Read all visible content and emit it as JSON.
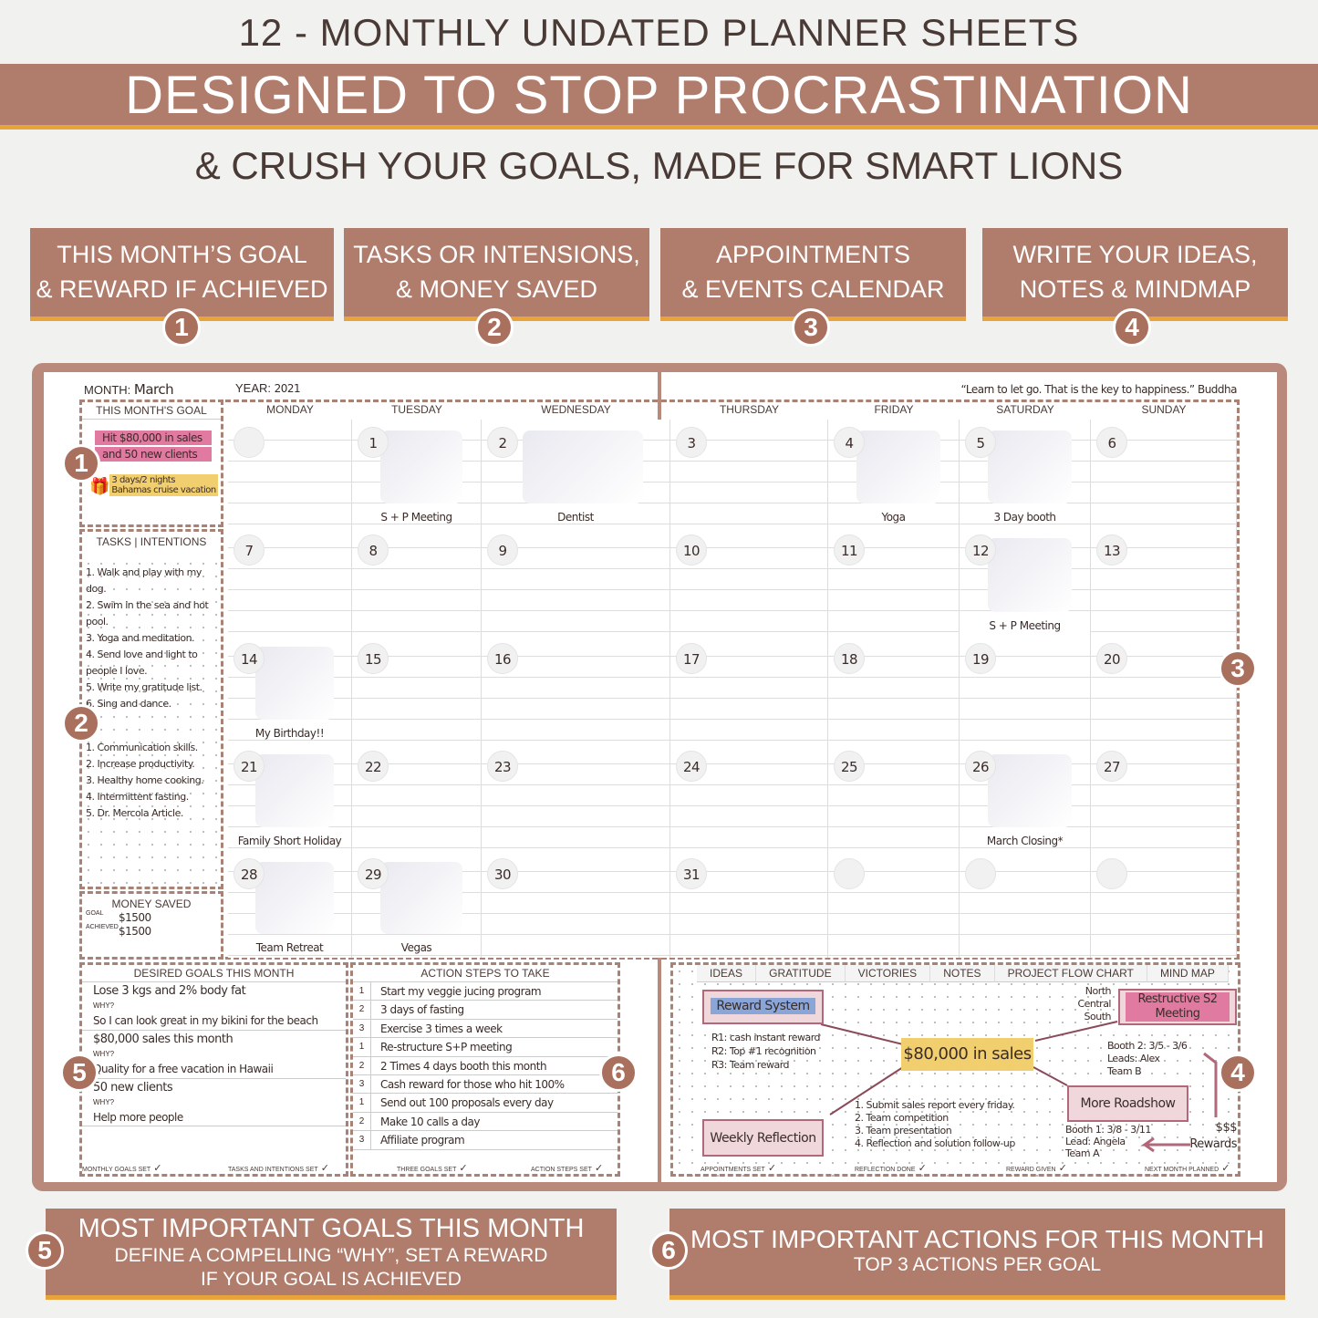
{
  "header": {
    "line1": "12 - MONTHLY UNDATED PLANNER SHEETS",
    "banner": "DESIGNED TO STOP PROCRASTINATION",
    "subtitle": "& CRUSH YOUR GOALS, MADE FOR SMART LIONS"
  },
  "features": [
    {
      "num": "1",
      "text": "THIS MONTH’S GOAL\n& REWARD IF ACHIEVED"
    },
    {
      "num": "2",
      "text": "TASKS OR INTENSIONS,\n& MONEY SAVED"
    },
    {
      "num": "3",
      "text": "APPOINTMENTS\n& EVENTS CALENDAR"
    },
    {
      "num": "4",
      "text": "WRITE YOUR IDEAS,\nNOTES & MINDMAP"
    }
  ],
  "planner": {
    "month_label": "MONTH:",
    "month": "March",
    "year_label": "YEAR:",
    "year": "2021",
    "quote": "“Learn to let go. That is the key to happiness.” Buddha",
    "goal_title": "THIS MONTH'S GOAL",
    "goal_lines": [
      "Hit $80,000 in sales",
      "and 50 new clients"
    ],
    "reward_lines": [
      "3 days/2 nights",
      "Bahamas cruise vacation"
    ],
    "tasks_title": "TASKS | INTENTIONS",
    "tasks": [
      "1. Walk and play with my dog.",
      "2. Swim in the sea and hot pool.",
      "3. Yoga and meditation.",
      "4. Send love and light to people I love.",
      "5. Write my gratitude list.",
      "6. Sing and dance."
    ],
    "tasks2": [
      "1. Communication skills.",
      "2. Increase productivity.",
      "3. Healthy home cooking.",
      "4. Intermittent fasting.",
      "5. Dr. Mercola Article."
    ],
    "money_title": "MONEY SAVED",
    "goal_small": "GOAL",
    "goal_amount": "$1500",
    "achieved_small": "ACHIEVED",
    "achieved_amount": "$1500",
    "days": [
      "MONDAY",
      "TUESDAY",
      "WEDNESDAY",
      "THURSDAY",
      "FRIDAY",
      "SATURDAY",
      "SUNDAY"
    ],
    "weeks": [
      [
        {
          "d": ""
        },
        {
          "d": "1",
          "e": "S + P Meeting"
        },
        {
          "d": "2",
          "e": "Dentist"
        },
        {
          "d": "3"
        },
        {
          "d": "4",
          "e": "Yoga"
        },
        {
          "d": "5",
          "e": "3 Day booth"
        },
        {
          "d": "6"
        }
      ],
      [
        {
          "d": "7"
        },
        {
          "d": "8"
        },
        {
          "d": "9"
        },
        {
          "d": "10"
        },
        {
          "d": "11"
        },
        {
          "d": "12",
          "e": "S + P Meeting"
        },
        {
          "d": "13"
        }
      ],
      [
        {
          "d": "14",
          "e": "My Birthday!!"
        },
        {
          "d": "15"
        },
        {
          "d": "16"
        },
        {
          "d": "17"
        },
        {
          "d": "18"
        },
        {
          "d": "19"
        },
        {
          "d": "20"
        }
      ],
      [
        {
          "d": "21",
          "e": "Family Short Holiday"
        },
        {
          "d": "22"
        },
        {
          "d": "23"
        },
        {
          "d": "24"
        },
        {
          "d": "25"
        },
        {
          "d": "26",
          "e": "March Closing*"
        },
        {
          "d": "27"
        }
      ],
      [
        {
          "d": "28",
          "e": "Team Retreat"
        },
        {
          "d": "29",
          "e": "Vegas"
        },
        {
          "d": "30"
        },
        {
          "d": "31"
        },
        {
          "d": ""
        },
        {
          "d": ""
        },
        {
          "d": ""
        }
      ]
    ],
    "goals_title": "DESIRED GOALS THIS MONTH",
    "why": "WHY?",
    "goals": [
      {
        "goal": "Lose 3 kgs and 2% body fat",
        "why": "So I can look great in my bikini for the beach"
      },
      {
        "goal": "$80,000 sales this month",
        "why": "Quality for a free vacation in Hawaii"
      },
      {
        "goal": "50 new clients",
        "why": "Help more people"
      }
    ],
    "actions_title": "ACTION STEPS TO TAKE",
    "actions": [
      {
        "n": "1",
        "t": "Start my veggie jucing program"
      },
      {
        "n": "2",
        "t": "3 days of fasting"
      },
      {
        "n": "3",
        "t": "Exercise 3 times a week"
      },
      {
        "n": "1",
        "t": "Re-structure S+P meeting"
      },
      {
        "n": "2",
        "t": "2 Times 4 days booth this month"
      },
      {
        "n": "3",
        "t": "Cash reward for those who hit 100%"
      },
      {
        "n": "1",
        "t": "Send out 100 proposals every day"
      },
      {
        "n": "2",
        "t": "Make 10 calls a day"
      },
      {
        "n": "3",
        "t": "Affiliate program"
      }
    ],
    "checks": [
      "MONTHLY GOALS SET",
      "TASKS AND INTENTIONS SET",
      "THREE GOALS SET",
      "ACTION STEPS SET",
      "APPOINTMENTS SET",
      "REFLECTION DONE",
      "REWARD GIVEN",
      "NEXT MONTH PLANNED"
    ],
    "notes_tabs": [
      "IDEAS",
      "GRATITUDE",
      "VICTORIES",
      "NOTES",
      "PROJECT FLOW CHART",
      "MIND MAP"
    ],
    "mindmap": {
      "center": "$80,000 in sales",
      "reward": "Reward System",
      "reward_notes": [
        "R1: cash instant reward",
        "R2: Top #1 recognition",
        "R3: Team reward"
      ],
      "meeting": "Restructive S2 Meeting",
      "regions": [
        "North",
        "Central",
        "South"
      ],
      "booth2": [
        "Booth 2: 3/5 - 3/6",
        "Leads: Alex",
        "Team B"
      ],
      "roadshow": "More Roadshow",
      "booth1": [
        "Booth 1: 3/8 - 3/11",
        "Lead: Angela",
        "Team A"
      ],
      "weekly": "Weekly Reflection",
      "weekly_notes": [
        "1. Submit sales report every friday.",
        "2. Team competition",
        "3. Team presentation",
        "4. Reflection and solution follow-up"
      ],
      "money": "$$$",
      "rewards": "Rewards"
    }
  },
  "callouts": [
    {
      "num": "5",
      "title": "MOST IMPORTANT GOALS THIS MONTH",
      "sub": "DEFINE A COMPELLING “WHY”, SET A REWARD\nIF YOUR GOAL IS ACHIEVED"
    },
    {
      "num": "6",
      "title": "MOST IMPORTANT ACTIONS FOR THIS MONTH",
      "sub": "TOP 3 ACTIONS PER GOAL"
    }
  ],
  "colors": {
    "brand": "#b07d6c",
    "accent": "#e8a33a",
    "pink": "#e07aa0",
    "yellow": "#f2cf6e",
    "blue": "#8aa6d8"
  }
}
